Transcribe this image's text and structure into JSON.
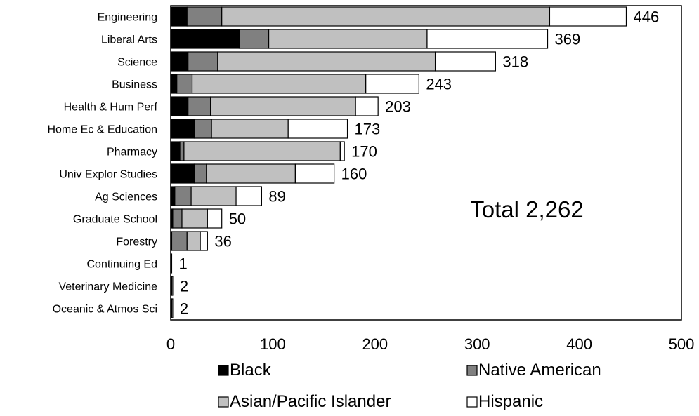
{
  "chart_data": {
    "type": "bar",
    "orientation": "horizontal",
    "stacked": true,
    "categories": [
      "Engineering",
      "Liberal Arts",
      "Science",
      "Business",
      "Health & Hum Perf",
      "Home Ec & Education",
      "Pharmacy",
      "Univ Explor Studies",
      "Ag Sciences",
      "Graduate School",
      "Forestry",
      "Continuing Ed",
      "Veterinary Medicine",
      "Oceanic & Atmos Sci"
    ],
    "series": [
      {
        "name": "Black",
        "color": "#000000",
        "values": [
          16,
          67,
          17,
          6,
          17,
          23,
          9,
          23,
          4,
          2,
          1,
          0,
          0,
          0
        ]
      },
      {
        "name": "Native American",
        "color": "#808080",
        "values": [
          34,
          29,
          29,
          15,
          22,
          17,
          4,
          12,
          16,
          9,
          15,
          0,
          1,
          1
        ]
      },
      {
        "name": "Asian/Pacific Islander",
        "color": "#c0c0c0",
        "values": [
          321,
          155,
          213,
          170,
          142,
          75,
          153,
          87,
          44,
          25,
          13,
          0,
          0,
          0
        ]
      },
      {
        "name": "Hispanic",
        "color": "#ffffff",
        "values": [
          75,
          118,
          59,
          52,
          22,
          58,
          4,
          38,
          25,
          14,
          7,
          1,
          1,
          1
        ]
      }
    ],
    "totals": [
      "446",
      "369",
      "318",
      "243",
      "203",
      "173",
      "170",
      "160",
      "89",
      "50",
      "36",
      "1",
      "2",
      "2"
    ],
    "xlim": [
      0,
      500
    ],
    "xticks": [
      "0",
      "100",
      "200",
      "300",
      "400",
      "500"
    ],
    "annotation": "Total 2,262",
    "legend": "bottom",
    "grid": false
  }
}
